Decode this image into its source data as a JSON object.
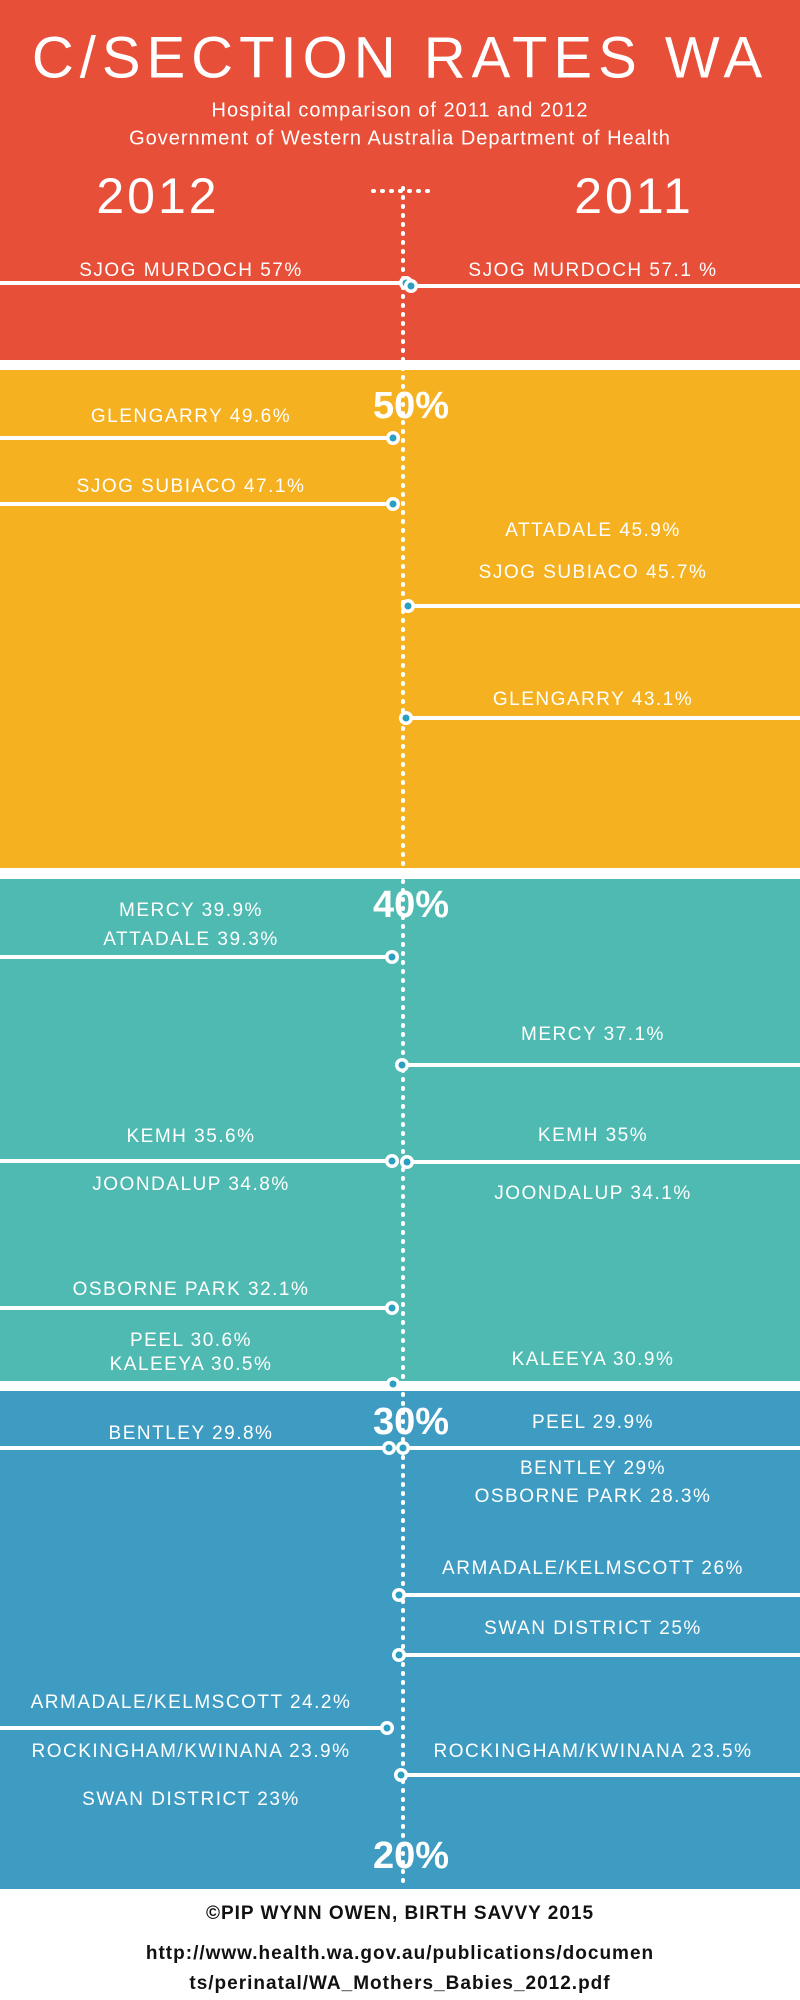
{
  "header": {
    "title": "C/SECTION RATES WA",
    "subtitle": "Hospital comparison of 2011 and 2012",
    "source": "Government of Western Australia Department of Health"
  },
  "columns": {
    "left": "2012",
    "right": "2011"
  },
  "scale_labels": [
    "50%",
    "40%",
    "30%",
    "20%"
  ],
  "left": [
    "SJOG MURDOCH 57%",
    "GLENGARRY 49.6%",
    "SJOG SUBIACO 47.1%",
    "MERCY 39.9%",
    "ATTADALE 39.3%",
    "KEMH 35.6%",
    "JOONDALUP 34.8%",
    "OSBORNE PARK 32.1%",
    "PEEL 30.6%",
    "KALEEYA 30.5%",
    "BENTLEY 29.8%",
    "ARMADALE/KELMSCOTT 24.2%",
    "ROCKINGHAM/KWINANA 23.9%",
    "SWAN DISTRICT 23%"
  ],
  "right": [
    "SJOG MURDOCH 57.1 %",
    "ATTADALE 45.9%",
    "SJOG SUBIACO 45.7%",
    "GLENGARRY 43.1%",
    "MERCY 37.1%",
    "KEMH 35%",
    "JOONDALUP 34.1%",
    "KALEEYA 30.9%",
    "PEEL 29.9%",
    "BENTLEY 29%",
    "OSBORNE PARK  28.3%",
    "ARMADALE/KELMSCOTT 26%",
    "SWAN DISTRICT 25%",
    "ROCKINGHAM/KWINANA 23.5%"
  ],
  "footer": {
    "credit": "©PIP WYNN OWEN, BIRTH SAVVY 2015",
    "url_lines": [
      "http://www.health.wa.gov.au/publications/documen",
      "ts/perinatal/WA_Mothers_Babies_2012.pdf"
    ]
  }
}
